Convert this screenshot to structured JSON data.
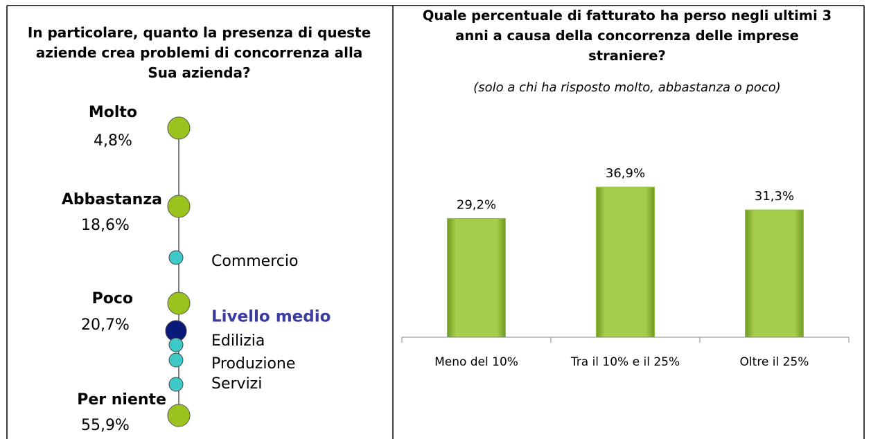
{
  "scale": {
    "title": "In particolare, quanto la presenza di queste aziende crea problemi di concorrenza alla Sua azienda?",
    "levels": [
      {
        "label": "Molto",
        "value": "4,8%"
      },
      {
        "label": "Abbastanza",
        "value": "18,6%"
      },
      {
        "label": "Poco",
        "value": "20,7%"
      },
      {
        "label": "Per niente",
        "value": "55,9%"
      }
    ],
    "markers": [
      {
        "label": "Commercio"
      },
      {
        "label": "Livello medio"
      },
      {
        "label": "Edilizia"
      },
      {
        "label": "Produzione"
      },
      {
        "label": "Servizi"
      }
    ]
  },
  "chart_data": {
    "type": "bar",
    "title": "Quale percentuale di fatturato ha perso negli ultimi 3 anni a causa della concorrenza delle imprese straniere?",
    "subtitle": "(solo a chi ha risposto molto, abbastanza o poco)",
    "categories": [
      "Meno del 10%",
      "Tra il 10% e il 25%",
      "Oltre il 25%"
    ],
    "values": [
      29.2,
      36.9,
      31.3
    ],
    "value_labels": [
      "29,2%",
      "36,9%",
      "31,3%"
    ],
    "color": "#92c13c",
    "ylim": [
      0,
      40
    ]
  }
}
